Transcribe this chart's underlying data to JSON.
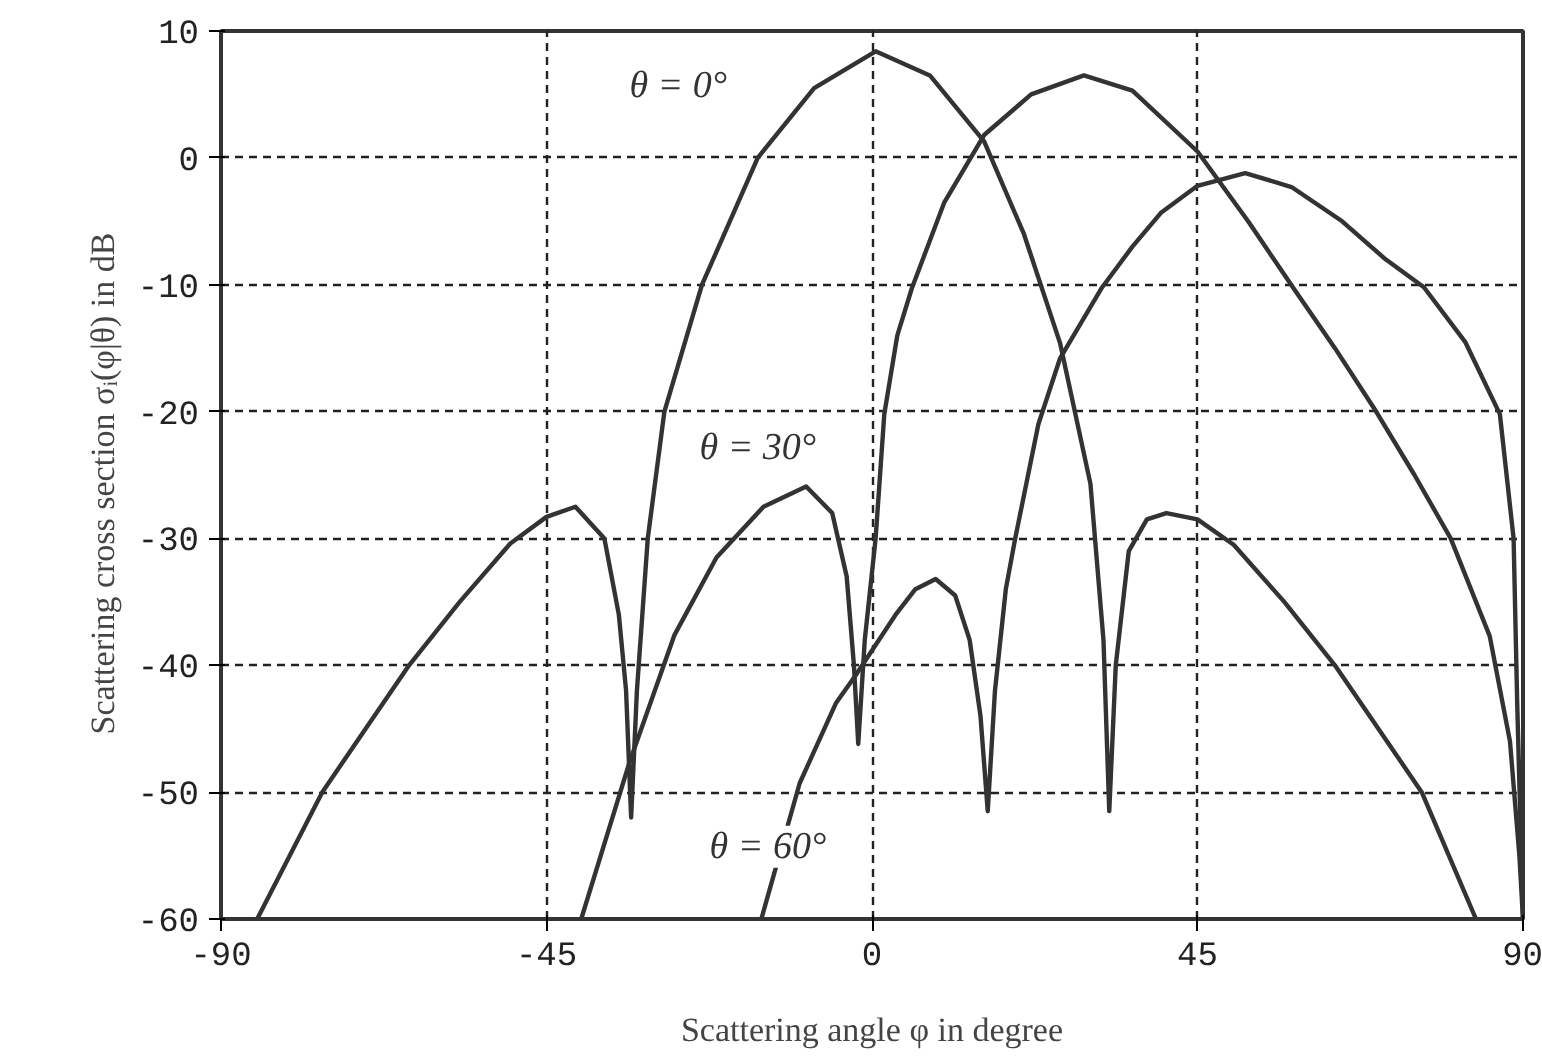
{
  "chart_data": {
    "type": "line",
    "xlabel": "Scattering angle φ in degree",
    "ylabel": "Scattering cross section  σᵢ(φ|θ)  in dB",
    "xlim": [
      -90,
      90
    ],
    "ylim": [
      -60,
      10
    ],
    "xticks": [
      -90,
      -45,
      0,
      45,
      90
    ],
    "yticks": [
      -60,
      -50,
      -40,
      -30,
      -20,
      -10,
      0,
      10
    ],
    "grid": true,
    "line_style": "solid",
    "marker": "none",
    "series": [
      {
        "name": "θ = 0°",
        "color": "#333333",
        "x": [
          -85,
          -76,
          -64,
          -57,
          -50,
          -45,
          -41,
          -37,
          -35,
          -34,
          -33.3,
          -32.5,
          -31,
          -28.7,
          -23.5,
          -15.8,
          -8,
          0.5,
          8,
          15.5,
          21,
          26,
          30.2,
          32,
          32.8,
          33.7,
          35.5,
          38,
          40.7,
          45,
          50,
          57,
          64,
          76,
          83.5
        ],
        "values": [
          -60,
          -50,
          -40,
          -35,
          -30.4,
          -28.3,
          -27.5,
          -30,
          -36,
          -42,
          -52,
          -42,
          -30,
          -20,
          -10,
          0,
          5.5,
          8.4,
          6.5,
          1.3,
          -6,
          -14.6,
          -25.7,
          -38,
          -51.5,
          -40,
          -31,
          -28.5,
          -28,
          -28.5,
          -30.5,
          -35,
          -40,
          -50,
          -60
        ]
      },
      {
        "name": "θ = 30°",
        "color": "#333333",
        "x": [
          -40.2,
          -33.5,
          -27.3,
          -21.5,
          -15,
          -9.1,
          -5.5,
          -3.5,
          -2.5,
          -1.9,
          -1,
          0.5,
          1.7,
          3.5,
          5.5,
          10,
          15.5,
          22,
          29.3,
          36,
          45,
          52,
          58.3,
          64,
          69.7,
          75,
          80,
          85.4,
          88.2,
          89.5,
          90
        ],
        "values": [
          -60,
          -47.6,
          -37.6,
          -31.5,
          -27.5,
          -25.9,
          -28,
          -33,
          -40,
          -46.2,
          -38,
          -30,
          -20.2,
          -14,
          -10.3,
          -3.5,
          1.8,
          5,
          6.5,
          5.3,
          0.5,
          -5,
          -10.3,
          -15,
          -20,
          -25,
          -30,
          -37.7,
          -46,
          -55,
          -60
        ]
      },
      {
        "name": "θ = 60°",
        "color": "#333333",
        "x": [
          -15.3,
          -10,
          -5,
          -2.4,
          3.4,
          6,
          8.8,
          11.5,
          13.5,
          15,
          16,
          17,
          18.5,
          19.8,
          23,
          26,
          31.7,
          36,
          40,
          45,
          51.6,
          58,
          65,
          71,
          76.3,
          82,
          86.8,
          88.7,
          89.2,
          90
        ],
        "values": [
          -60,
          -49.3,
          -43,
          -40.9,
          -35.9,
          -34,
          -33.2,
          -34.5,
          -38,
          -44,
          -51.5,
          -42,
          -34,
          -30,
          -21,
          -15.8,
          -10.3,
          -7,
          -4.3,
          -2.2,
          -1.2,
          -2.3,
          -5,
          -8,
          -10.2,
          -14.5,
          -20.2,
          -30,
          -43,
          -60
        ]
      }
    ]
  }
}
